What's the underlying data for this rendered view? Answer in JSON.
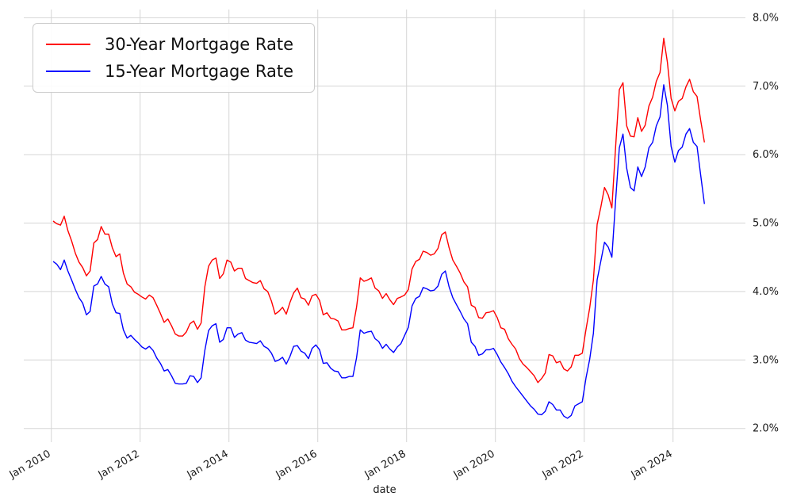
{
  "chart_data": {
    "type": "line",
    "title": "",
    "xlabel": "date",
    "ylabel": "",
    "grid": true,
    "legend_position": "upper left",
    "xlim": [
      2009.38,
      2025.63
    ],
    "ylim": [
      1.8,
      8.12
    ],
    "x_ticks": [
      2010,
      2012,
      2014,
      2016,
      2018,
      2020,
      2022,
      2024
    ],
    "x_tick_labels": [
      "Jan 2010",
      "Jan 2012",
      "Jan 2014",
      "Jan 2016",
      "Jan 2018",
      "Jan 2020",
      "Jan 2022",
      "Jan 2024"
    ],
    "y_ticks": [
      2.0,
      3.0,
      4.0,
      5.0,
      6.0,
      7.0,
      8.0
    ],
    "y_tick_labels": [
      "2.0%",
      "3.0%",
      "4.0%",
      "5.0%",
      "6.0%",
      "7.0%",
      "8.0%"
    ],
    "x_start": 2010.04,
    "x_unit": "monthly",
    "series": [
      {
        "name": "30-Year Mortgage Rate",
        "color": "#ff0000",
        "values": [
          5.03,
          4.99,
          4.97,
          5.1,
          4.89,
          4.74,
          4.56,
          4.43,
          4.35,
          4.23,
          4.3,
          4.71,
          4.76,
          4.95,
          4.84,
          4.84,
          4.64,
          4.51,
          4.55,
          4.27,
          4.11,
          4.07,
          3.99,
          3.96,
          3.92,
          3.89,
          3.95,
          3.91,
          3.8,
          3.68,
          3.55,
          3.6,
          3.5,
          3.38,
          3.35,
          3.35,
          3.41,
          3.53,
          3.57,
          3.45,
          3.54,
          4.07,
          4.37,
          4.46,
          4.49,
          4.19,
          4.26,
          4.46,
          4.43,
          4.3,
          4.34,
          4.34,
          4.19,
          4.16,
          4.13,
          4.12,
          4.16,
          4.04,
          4.0,
          3.86,
          3.67,
          3.71,
          3.77,
          3.67,
          3.84,
          3.98,
          4.05,
          3.91,
          3.89,
          3.8,
          3.94,
          3.96,
          3.87,
          3.66,
          3.69,
          3.61,
          3.6,
          3.57,
          3.44,
          3.44,
          3.46,
          3.47,
          3.77,
          4.2,
          4.15,
          4.17,
          4.2,
          4.05,
          4.01,
          3.9,
          3.97,
          3.88,
          3.81,
          3.9,
          3.92,
          3.95,
          4.03,
          4.33,
          4.44,
          4.47,
          4.59,
          4.57,
          4.53,
          4.55,
          4.63,
          4.83,
          4.87,
          4.64,
          4.46,
          4.37,
          4.27,
          4.14,
          4.07,
          3.8,
          3.77,
          3.62,
          3.61,
          3.69,
          3.7,
          3.72,
          3.62,
          3.47,
          3.45,
          3.31,
          3.23,
          3.16,
          3.02,
          2.94,
          2.89,
          2.83,
          2.77,
          2.67,
          2.73,
          2.81,
          3.08,
          3.06,
          2.96,
          2.98,
          2.87,
          2.84,
          2.9,
          3.07,
          3.07,
          3.1,
          3.45,
          3.76,
          4.17,
          4.98,
          5.23,
          5.52,
          5.41,
          5.22,
          6.11,
          6.95,
          7.05,
          6.42,
          6.27,
          6.26,
          6.54,
          6.34,
          6.43,
          6.71,
          6.84,
          7.07,
          7.2,
          7.7,
          7.35,
          6.82,
          6.64,
          6.78,
          6.82,
          6.99,
          7.1,
          6.92,
          6.85,
          6.5,
          6.18
        ]
      },
      {
        "name": "15-Year Mortgage Rate",
        "color": "#0000ff",
        "values": [
          4.44,
          4.4,
          4.32,
          4.46,
          4.3,
          4.17,
          4.03,
          3.91,
          3.83,
          3.66,
          3.71,
          4.08,
          4.11,
          4.22,
          4.11,
          4.07,
          3.82,
          3.69,
          3.68,
          3.44,
          3.32,
          3.36,
          3.3,
          3.25,
          3.19,
          3.16,
          3.2,
          3.14,
          3.03,
          2.95,
          2.84,
          2.86,
          2.77,
          2.66,
          2.65,
          2.65,
          2.66,
          2.77,
          2.76,
          2.67,
          2.74,
          3.14,
          3.43,
          3.5,
          3.53,
          3.26,
          3.3,
          3.47,
          3.47,
          3.33,
          3.38,
          3.4,
          3.29,
          3.26,
          3.25,
          3.24,
          3.28,
          3.2,
          3.17,
          3.1,
          2.98,
          3.0,
          3.04,
          2.94,
          3.05,
          3.2,
          3.21,
          3.13,
          3.1,
          3.02,
          3.17,
          3.22,
          3.15,
          2.95,
          2.96,
          2.88,
          2.84,
          2.83,
          2.74,
          2.74,
          2.76,
          2.76,
          3.03,
          3.44,
          3.39,
          3.41,
          3.42,
          3.31,
          3.27,
          3.17,
          3.23,
          3.16,
          3.11,
          3.19,
          3.24,
          3.36,
          3.48,
          3.79,
          3.9,
          3.93,
          4.06,
          4.04,
          4.01,
          4.02,
          4.08,
          4.25,
          4.3,
          4.07,
          3.91,
          3.81,
          3.71,
          3.6,
          3.53,
          3.26,
          3.2,
          3.07,
          3.09,
          3.15,
          3.15,
          3.17,
          3.08,
          2.97,
          2.89,
          2.8,
          2.69,
          2.61,
          2.54,
          2.47,
          2.4,
          2.33,
          2.28,
          2.21,
          2.2,
          2.25,
          2.39,
          2.35,
          2.27,
          2.27,
          2.18,
          2.15,
          2.19,
          2.33,
          2.36,
          2.39,
          2.74,
          3.01,
          3.39,
          4.17,
          4.44,
          4.72,
          4.65,
          4.5,
          5.33,
          6.1,
          6.3,
          5.8,
          5.52,
          5.47,
          5.82,
          5.68,
          5.82,
          6.1,
          6.18,
          6.42,
          6.55,
          7.02,
          6.72,
          6.12,
          5.89,
          6.06,
          6.11,
          6.3,
          6.38,
          6.18,
          6.12,
          5.7,
          5.28
        ]
      }
    ]
  }
}
